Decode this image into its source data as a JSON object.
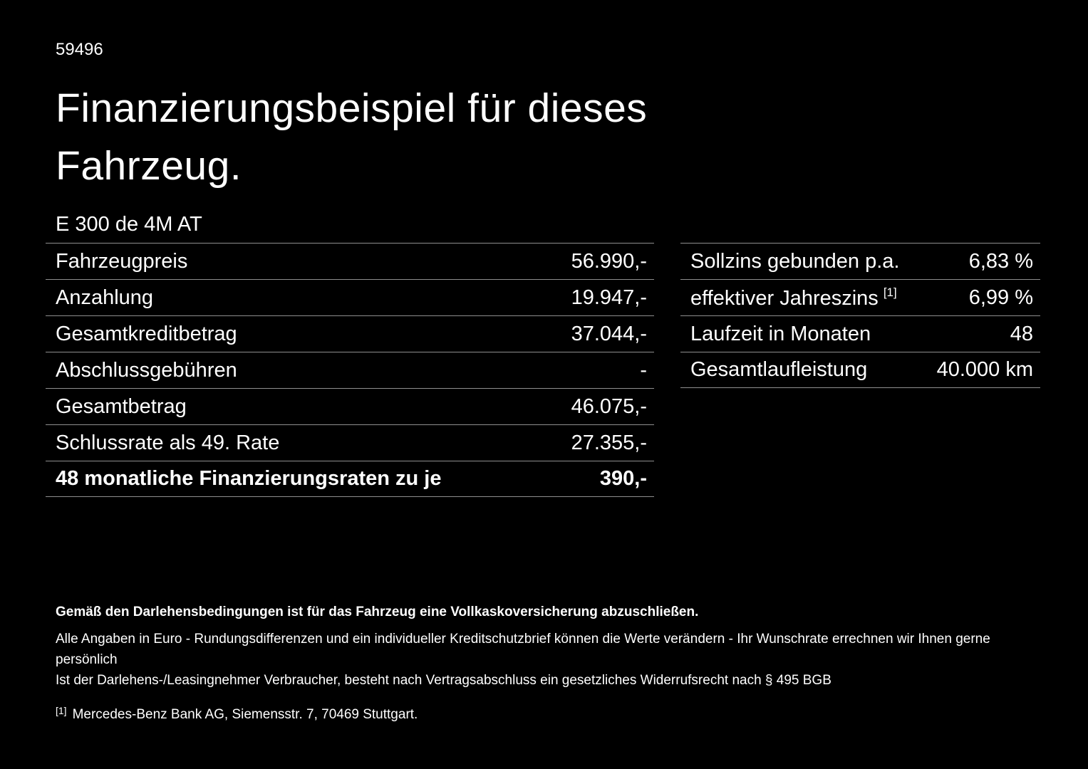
{
  "colors": {
    "background": "#000000",
    "text": "#ffffff",
    "divider": "#8f8f8f"
  },
  "page": {
    "id_number": "59496",
    "title_line1": "Finanzierungsbeispiel für dieses",
    "title_line2": "Fahrzeug.",
    "model": "E 300 de 4M AT"
  },
  "left_table": {
    "rows": [
      {
        "label": "Fahrzeugpreis",
        "value": "56.990,-"
      },
      {
        "label": "Anzahlung",
        "value": "19.947,-"
      },
      {
        "label": "Gesamtkreditbetrag",
        "value": "37.044,-"
      },
      {
        "label": "Abschlussgebühren",
        "value": "-"
      },
      {
        "label": "Gesamtbetrag",
        "value": "46.075,-"
      },
      {
        "label": "Schlussrate als 49. Rate",
        "value": "27.355,-"
      },
      {
        "label": "48 monatliche Finanzierungsraten zu je",
        "value": "390,-"
      }
    ]
  },
  "right_table": {
    "rows": [
      {
        "label": "Sollzins gebunden p.a.",
        "value": "6,83 %"
      },
      {
        "label": "effektiver Jahreszins",
        "sup": "[1]",
        "value": "6,99 %"
      },
      {
        "label": "Laufzeit in Monaten",
        "value": "48"
      },
      {
        "label": "Gesamtlaufleistung",
        "value": "40.000 km"
      }
    ]
  },
  "footnotes": {
    "bold_note": "Gemäß den Darlehensbedingungen ist für das Fahrzeug eine Vollkaskoversicherung abzuschließen.",
    "note1": "Alle Angaben in Euro - Rundungsdifferenzen und ein individueller Kreditschutzbrief können die Werte verändern - Ihr Wunschrate errechnen wir Ihnen gerne persönlich",
    "note2": "Ist der Darlehens-/Leasingnehmer Verbraucher, besteht nach Vertragsabschluss ein gesetzliches Widerrufsrecht nach § 495 BGB",
    "ref_marker": "[1]",
    "ref_text": "Mercedes-Benz Bank AG, Siemensstr. 7, 70469 Stuttgart."
  }
}
